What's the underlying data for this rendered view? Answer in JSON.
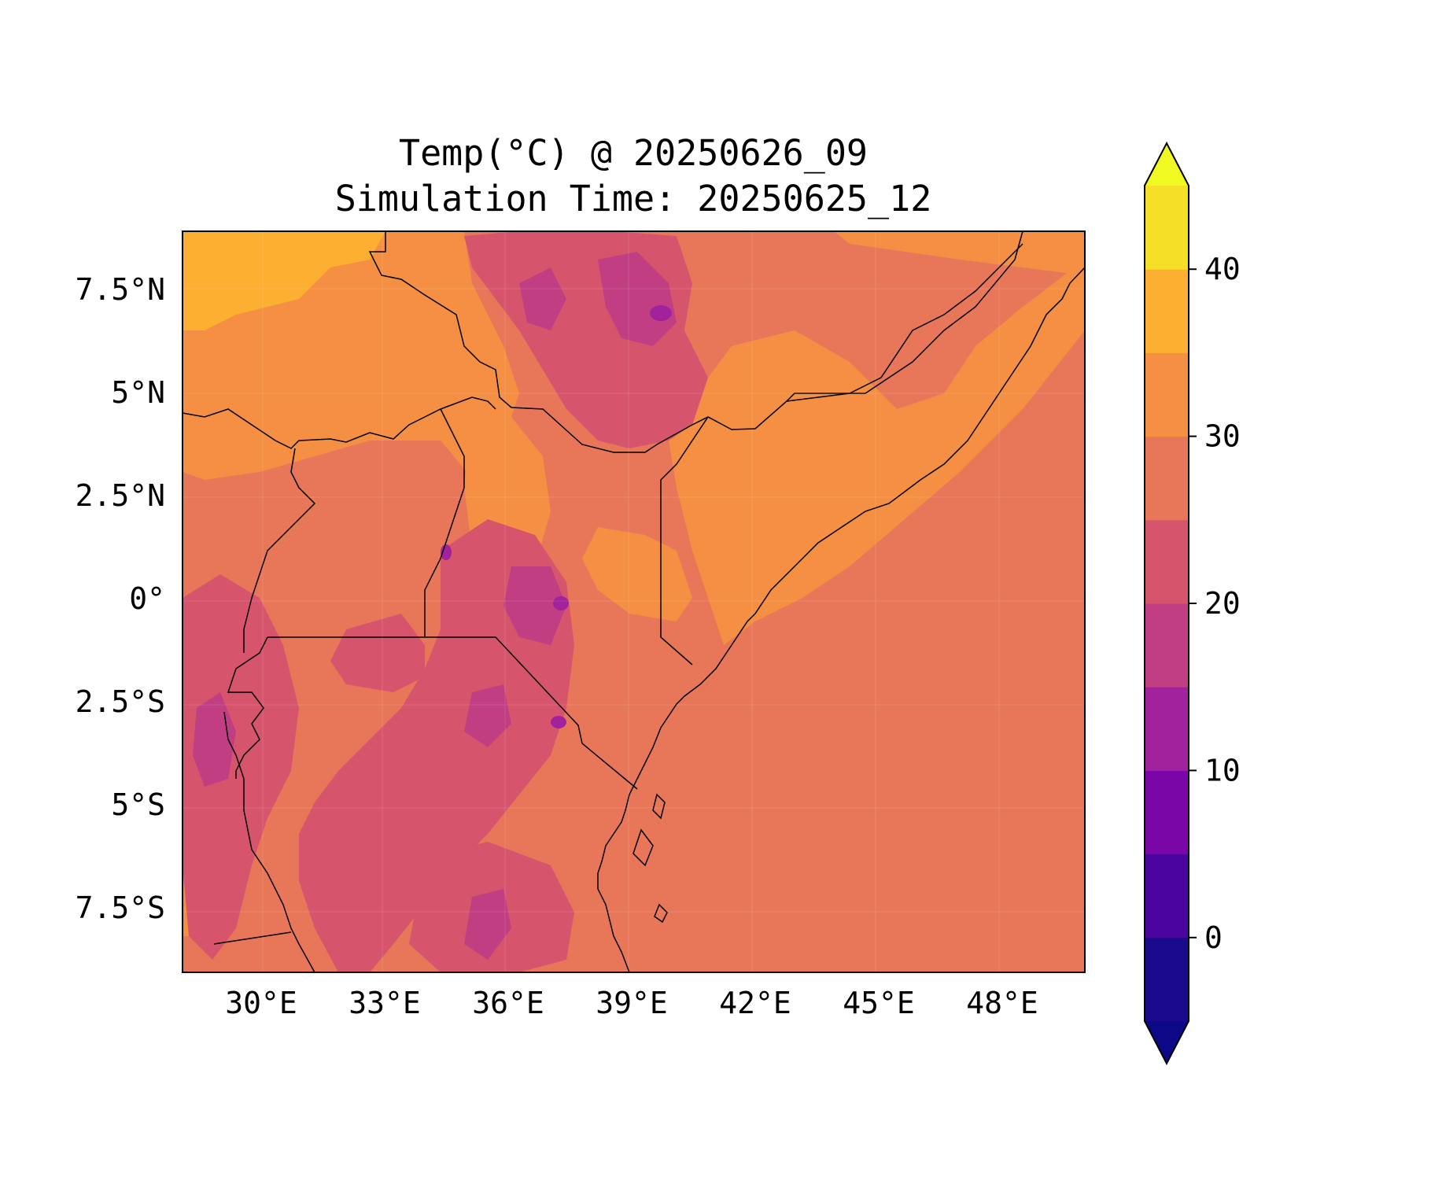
{
  "title": {
    "line1": "Temp(°C) @ 20250626_09",
    "line2": "Simulation Time: 20250625_12"
  },
  "map": {
    "variable": "Temperature",
    "unit": "°C",
    "lon_range": [
      28,
      50.5
    ],
    "lat_range": [
      -9,
      8.8
    ],
    "lon_ticks": [
      "30°E",
      "33°E",
      "36°E",
      "39°E",
      "42°E",
      "45°E",
      "48°E"
    ],
    "lat_ticks": [
      "7.5°N",
      "5°N",
      "2.5°N",
      "0°",
      "2.5°S",
      "5°S",
      "7.5°S"
    ],
    "background_level": "25-30",
    "coastline": "East African coast",
    "borders": "country borders"
  },
  "colorbar": {
    "ticks": [
      "0",
      "10",
      "20",
      "30",
      "40"
    ],
    "levels": [
      -5,
      0,
      5,
      10,
      15,
      20,
      25,
      30,
      35,
      40,
      45
    ],
    "extend": "both",
    "colors": [
      "#1b0b8c",
      "#4b04a0",
      "#7b06a8",
      "#a1229c",
      "#c13e83",
      "#d6556d",
      "#e8775a",
      "#f48f43",
      "#fdaf31",
      "#f5e027"
    ],
    "under_color": "#0d0887",
    "over_color": "#f0f921"
  }
}
